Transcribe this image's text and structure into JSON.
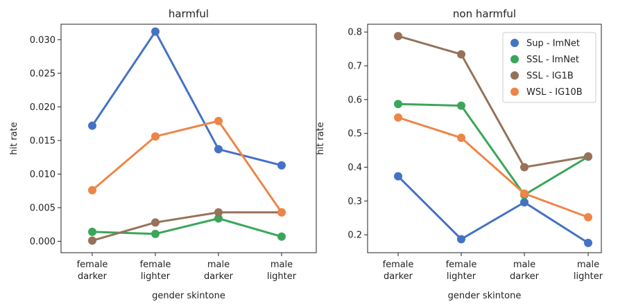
{
  "chart_data": [
    {
      "type": "line",
      "title": "harmful",
      "xlabel": "gender skintone",
      "ylabel": "hit rate",
      "categories": [
        [
          "female",
          "darker"
        ],
        [
          "female",
          "lighter"
        ],
        [
          "male",
          "darker"
        ],
        [
          "male",
          "lighter"
        ]
      ],
      "ylim": [
        -0.0017,
        0.0323
      ],
      "yticks": [
        "0.000",
        "0.005",
        "0.010",
        "0.015",
        "0.020",
        "0.025",
        "0.030"
      ],
      "ytick_values": [
        0.0,
        0.005,
        0.01,
        0.015,
        0.02,
        0.025,
        0.03
      ],
      "series": [
        {
          "name": "Sup - ImNet",
          "color": "#4472c4",
          "values": [
            0.0172,
            0.0312,
            0.0137,
            0.0113
          ]
        },
        {
          "name": "SSL - ImNet",
          "color": "#3aa65a",
          "values": [
            0.0014,
            0.0011,
            0.0034,
            0.0007
          ]
        },
        {
          "name": "SSL - IG1B",
          "color": "#967259",
          "values": [
            0.0001,
            0.0028,
            0.0043,
            0.0043
          ]
        },
        {
          "name": "WSL - IG10B",
          "color": "#ee8547",
          "values": [
            0.0076,
            0.0156,
            0.0179,
            0.0043
          ]
        }
      ]
    },
    {
      "type": "line",
      "title": "non harmful",
      "xlabel": "gender skintone",
      "ylabel": "hit rate",
      "categories": [
        [
          "female",
          "darker"
        ],
        [
          "female",
          "lighter"
        ],
        [
          "male",
          "darker"
        ],
        [
          "male",
          "lighter"
        ]
      ],
      "ylim": [
        0.147,
        0.823
      ],
      "yticks": [
        "0.2",
        "0.3",
        "0.4",
        "0.5",
        "0.6",
        "0.7",
        "0.8"
      ],
      "ytick_values": [
        0.2,
        0.3,
        0.4,
        0.5,
        0.6,
        0.7,
        0.8
      ],
      "legend_position": "top-right",
      "series": [
        {
          "name": "Sup - ImNet",
          "color": "#4472c4",
          "values": [
            0.373,
            0.187,
            0.296,
            0.176
          ]
        },
        {
          "name": "SSL - ImNet",
          "color": "#3aa65a",
          "values": [
            0.587,
            0.582,
            0.318,
            0.431
          ]
        },
        {
          "name": "SSL - IG1B",
          "color": "#967259",
          "values": [
            0.788,
            0.734,
            0.4,
            0.432
          ]
        },
        {
          "name": "WSL - IG10B",
          "color": "#ee8547",
          "values": [
            0.547,
            0.487,
            0.322,
            0.252
          ]
        }
      ]
    }
  ]
}
